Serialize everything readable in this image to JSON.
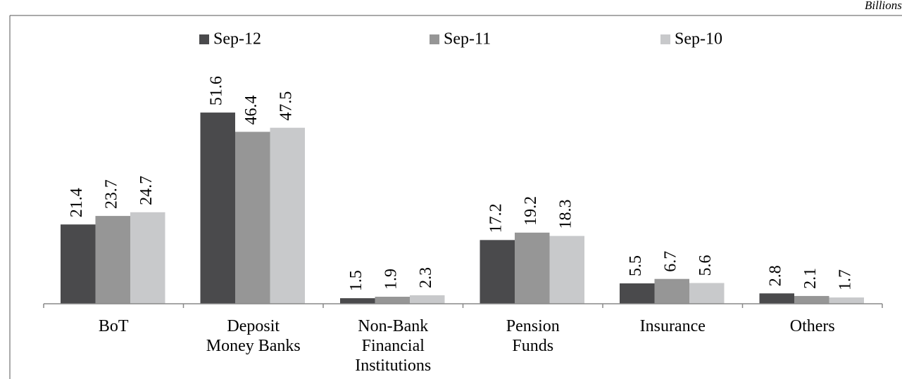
{
  "chart_data": {
    "type": "bar",
    "unit_note": "Billions of T",
    "categories": [
      "BoT",
      "Deposit Money Banks",
      "Non-Bank Financial Institutions",
      "Pension Funds",
      "Insurance",
      "Others"
    ],
    "series": [
      {
        "name": "Sep-12",
        "color": "#4a4a4c",
        "values": [
          21.4,
          51.6,
          1.5,
          17.2,
          5.5,
          2.8
        ]
      },
      {
        "name": "Sep-11",
        "color": "#969696",
        "values": [
          23.7,
          46.4,
          1.9,
          19.2,
          6.7,
          2.1
        ]
      },
      {
        "name": "Sep-10",
        "color": "#c8c9cb",
        "values": [
          24.7,
          47.5,
          2.3,
          18.3,
          5.6,
          1.7
        ]
      }
    ],
    "legend": "top"
  }
}
